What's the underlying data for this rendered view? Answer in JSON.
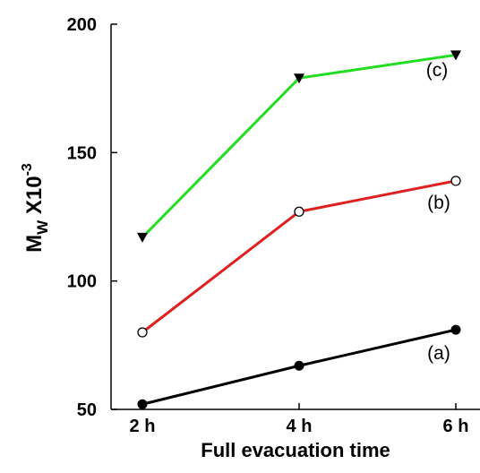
{
  "chart_data": {
    "type": "line",
    "xlabel": "Full evacuation time",
    "ylabel": {
      "main": "M",
      "sub": "W",
      "mid": " X10",
      "sup": "-3"
    },
    "categories": [
      "2 h",
      "4 h",
      "6 h"
    ],
    "ylim": [
      50,
      200
    ],
    "yticks": [
      50,
      100,
      150,
      200
    ],
    "grid": false,
    "series": [
      {
        "name": "(a)",
        "values": [
          52,
          67,
          81
        ],
        "color": "#000000",
        "marker": "filled-circle"
      },
      {
        "name": "(b)",
        "values": [
          80,
          127,
          139
        ],
        "color": "#e02020",
        "marker": "open-circle"
      },
      {
        "name": "(c)",
        "values": [
          117,
          179,
          188
        ],
        "color": "#22dd22",
        "marker": "filled-triangle-down"
      }
    ]
  }
}
